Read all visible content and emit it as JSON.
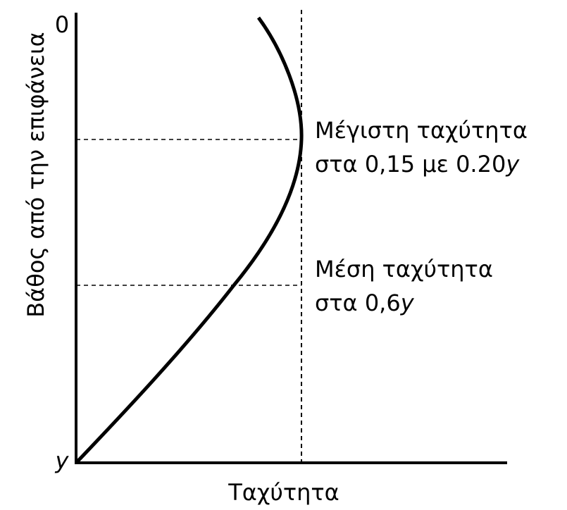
{
  "axes": {
    "y_label": "Βάθος από την επιφάνεια",
    "x_label": "Ταχύτητα",
    "y_top": "0",
    "y_bottom": "y"
  },
  "annotations": [
    {
      "line1": "Μέγιστη ταχύτητα",
      "line2": {
        "text": "στα 0,15 με 0.20",
        "var": "y"
      }
    },
    {
      "line1": "Μέση ταχύτητα",
      "line2": {
        "text": "στα 0,6",
        "var": "y"
      }
    }
  ]
}
